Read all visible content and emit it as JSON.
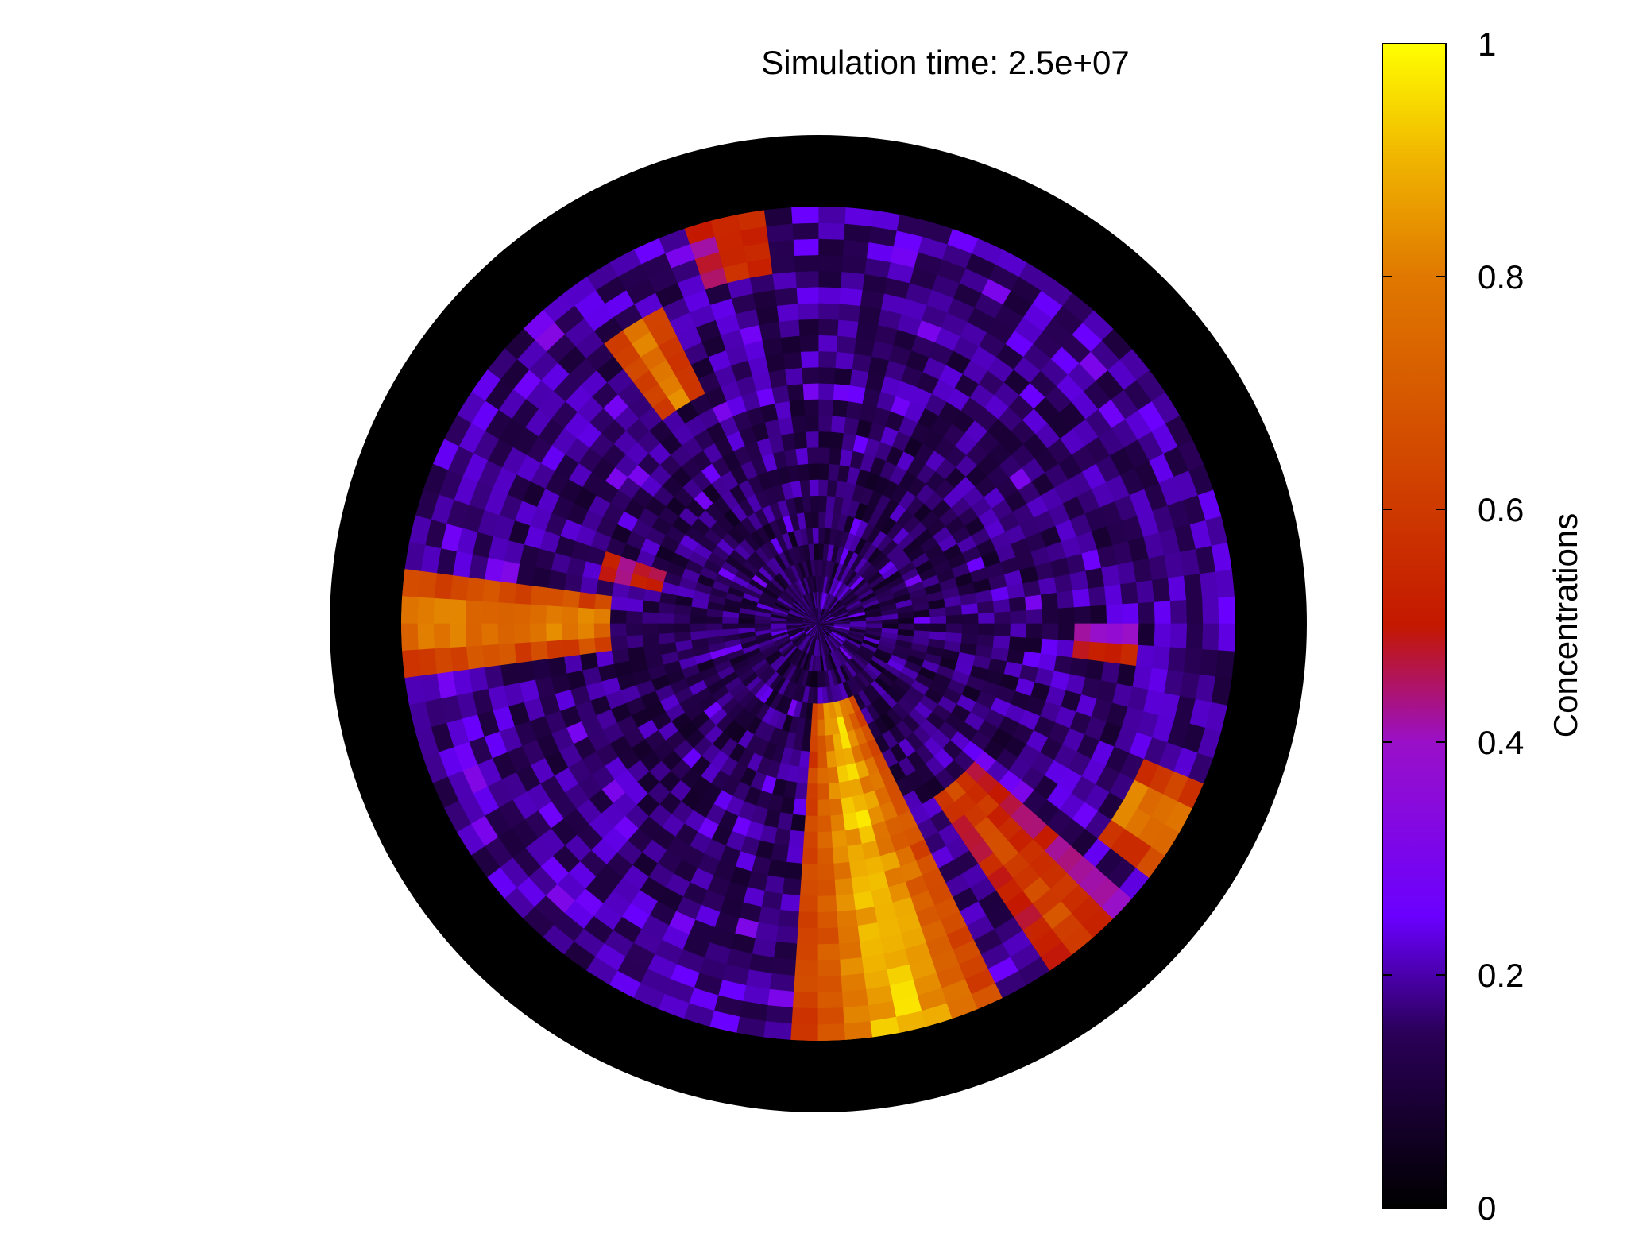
{
  "chart_data": {
    "type": "heatmap",
    "projection": "polar",
    "title": "Simulation time: 2.5e+07",
    "colorbar": {
      "label": "Concentrations",
      "range": [
        0,
        1
      ],
      "ticks": [
        {
          "value": 0,
          "label": "0"
        },
        {
          "value": 0.2,
          "label": "0.2"
        },
        {
          "value": 0.4,
          "label": "0.4"
        },
        {
          "value": 0.6,
          "label": "0.6"
        },
        {
          "value": 0.8,
          "label": "0.8"
        },
        {
          "value": 1,
          "label": "1"
        }
      ],
      "palette": [
        {
          "stop": 0.0,
          "color": "#000000"
        },
        {
          "stop": 0.15,
          "color": "#2a0058"
        },
        {
          "stop": 0.25,
          "color": "#6a00ff"
        },
        {
          "stop": 0.4,
          "color": "#9a10c8"
        },
        {
          "stop": 0.5,
          "color": "#c41800"
        },
        {
          "stop": 0.65,
          "color": "#d24a00"
        },
        {
          "stop": 0.8,
          "color": "#e07800"
        },
        {
          "stop": 0.9,
          "color": "#f0b400"
        },
        {
          "stop": 1.0,
          "color": "#ffff00"
        }
      ]
    },
    "background_level": 0.12,
    "hotspots": [
      {
        "description_angle_deg": 180,
        "radius_range": [
          0.5,
          1.0
        ],
        "angle_width_deg": 8,
        "value": 0.85
      },
      {
        "description_angle_deg": 282,
        "radius_range": [
          0.2,
          1.0
        ],
        "angle_width_deg": 14,
        "value": 0.95
      },
      {
        "description_angle_deg": 310,
        "radius_range": [
          0.5,
          1.0
        ],
        "angle_width_deg": 8,
        "value": 0.65
      },
      {
        "description_angle_deg": 330,
        "radius_range": [
          0.85,
          1.0
        ],
        "angle_width_deg": 6,
        "value": 0.9
      },
      {
        "description_angle_deg": 122,
        "radius_range": [
          0.6,
          0.85
        ],
        "angle_width_deg": 6,
        "value": 0.8
      },
      {
        "description_angle_deg": 102,
        "radius_range": [
          0.85,
          1.0
        ],
        "angle_width_deg": 6,
        "value": 0.62
      },
      {
        "description_angle_deg": 355,
        "radius_range": [
          0.6,
          0.75
        ],
        "angle_width_deg": 4,
        "value": 0.55
      },
      {
        "description_angle_deg": 165,
        "radius_range": [
          0.4,
          0.55
        ],
        "angle_width_deg": 5,
        "value": 0.55
      }
    ],
    "colors": {
      "ring": "#000000",
      "background": "#ffffff"
    }
  }
}
